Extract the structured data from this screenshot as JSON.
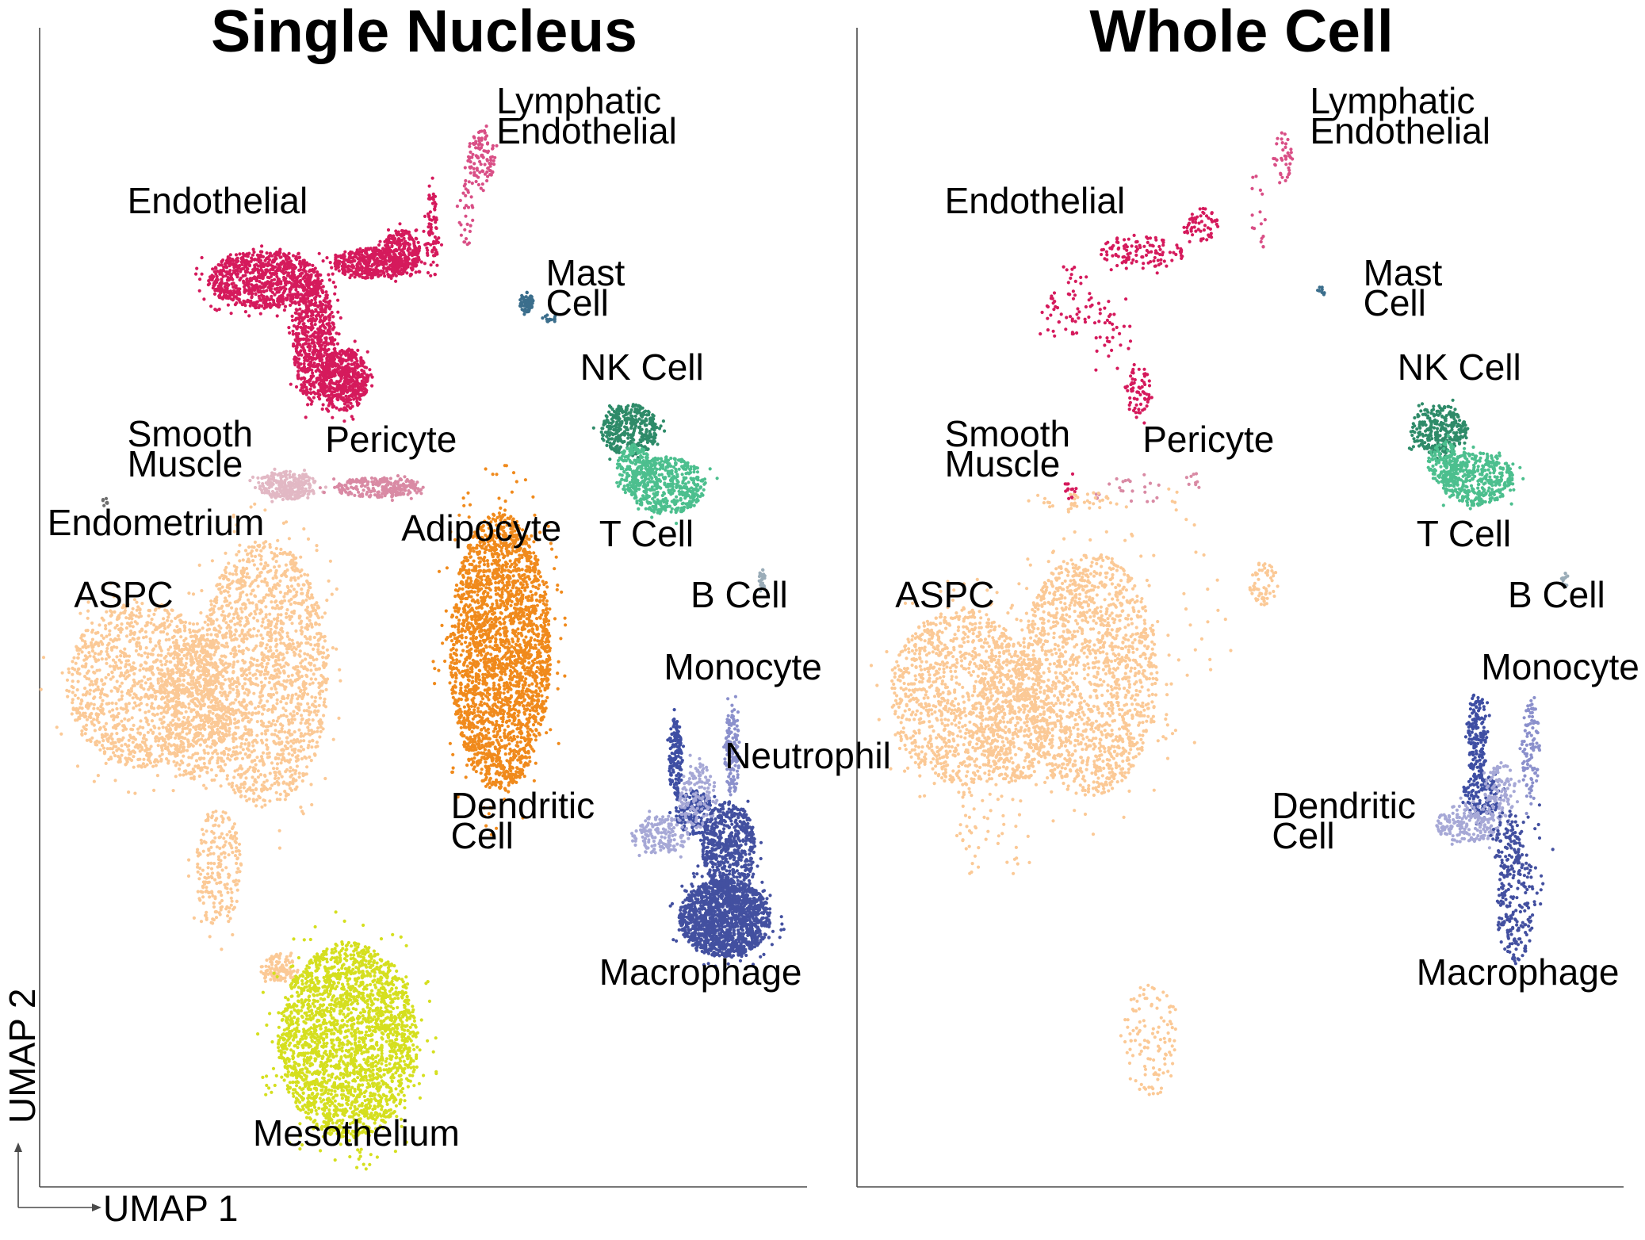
{
  "chart_data": [
    {
      "type": "scatter",
      "subtype": "umap",
      "title": "Single Nucleus",
      "xlabel": "UMAP 1",
      "ylabel": "UMAP 2",
      "xlim": [
        0,
        100
      ],
      "ylim": [
        0,
        100
      ],
      "grid": false,
      "legend": "none (clusters labeled in place)",
      "clusters": [
        {
          "name": "Lymphatic Endothelial",
          "label_lines": [
            "Lymphatic",
            "Endothelial"
          ],
          "color": "#d94f86",
          "density": 0.35,
          "blobs": [
            [
              57.5,
              91.5,
              1.8,
              2.5,
              300
            ],
            [
              55.5,
              86.5,
              0.9,
              3.5,
              90
            ]
          ]
        },
        {
          "name": "Endothelial",
          "label_lines": [
            "Endothelial"
          ],
          "color": "#d51a5c",
          "density": 1.0,
          "blobs": [
            [
              29,
              80.5,
              7.5,
              2.6,
              900
            ],
            [
              35.5,
              75,
              2.8,
              5.5,
              650
            ],
            [
              39.5,
              71.5,
              3.2,
              2.8,
              550
            ],
            [
              43,
              82,
              5.0,
              1.4,
              380
            ],
            [
              47,
              83,
              2.5,
              2.0,
              260
            ],
            [
              51,
              84.5,
              1.0,
              4.0,
              80
            ]
          ]
        },
        {
          "name": "Mast Cell",
          "label_lines": [
            "Mast",
            "Cell"
          ],
          "color": "#3b6e8c",
          "density": 0.5,
          "blobs": [
            [
              63.5,
              78.5,
              1.0,
              0.9,
              140
            ],
            [
              66.5,
              77.0,
              1.0,
              0.35,
              35
            ]
          ]
        },
        {
          "name": "NK Cell",
          "label_lines": [
            "NK Cell"
          ],
          "color": "#2e8b69",
          "density": 0.7,
          "blobs": [
            [
              77,
              67,
              3.8,
              2.3,
              520
            ]
          ]
        },
        {
          "name": "T Cell",
          "label_lines": [
            "T Cell"
          ],
          "color": "#4cbf8e",
          "density": 0.7,
          "blobs": [
            [
              82,
              62,
              5.0,
              2.6,
              700
            ],
            [
              77.5,
              63.5,
              2.2,
              2.2,
              250
            ]
          ]
        },
        {
          "name": "Smooth Muscle",
          "label_lines": [
            "Smooth",
            "Muscle"
          ],
          "color": "#e2b8c4",
          "density": 0.8,
          "blobs": [
            [
              32,
              62,
              3.8,
              1.3,
              380
            ]
          ]
        },
        {
          "name": "Pericyte",
          "label_lines": [
            "Pericyte"
          ],
          "color": "#d98aa4",
          "density": 0.8,
          "blobs": [
            [
              44,
              61.8,
              6.0,
              0.9,
              320
            ]
          ]
        },
        {
          "name": "Endometrium",
          "label_lines": [
            "Endometrium"
          ],
          "color": "#6e6e6e",
          "density": 0.3,
          "blobs": [
            [
              8,
              60.5,
              0.5,
              0.4,
              24
            ]
          ]
        },
        {
          "name": "Adipocyte",
          "label_lines": [
            "Adipocyte"
          ],
          "color": "#f08a1c",
          "density": 1.0,
          "blobs": [
            [
              60,
              47,
              6.6,
              12.5,
              2600
            ]
          ]
        },
        {
          "name": "ASPC",
          "label_lines": [
            "ASPC"
          ],
          "color": "#fbc996",
          "density": 1.0,
          "blobs": [
            [
              13,
              44,
              10.0,
              7.5,
              1200
            ],
            [
              29,
              45,
              8.5,
              12.0,
              1700
            ],
            [
              20,
              42,
              5.0,
              6.5,
              500
            ],
            [
              23,
              27.5,
              3.0,
              5.5,
              220
            ],
            [
              31,
              18.5,
              2.5,
              1.3,
              120
            ]
          ]
        },
        {
          "name": "Mesothelium",
          "label_lines": [
            "Mesothelium"
          ],
          "color": "#d5df1f",
          "density": 1.0,
          "blobs": [
            [
              40,
              12,
              9.2,
              8.8,
              2400
            ]
          ]
        },
        {
          "name": "B Cell",
          "label_lines": [
            "B Cell"
          ],
          "color": "#9aacb8",
          "density": 0.5,
          "blobs": [
            [
              94.5,
              53.5,
              0.5,
              0.9,
              50
            ]
          ]
        },
        {
          "name": "Monocyte",
          "label_lines": [
            "Monocyte"
          ],
          "color": "#3e4ea3",
          "density": 0.7,
          "blobs": [
            [
              83,
              37.5,
              0.9,
              3.5,
              220
            ],
            [
              85.5,
              32.5,
              2.5,
              2.0,
              260
            ]
          ]
        },
        {
          "name": "Neutrophil",
          "label_lines": [
            "Neutrophil"
          ],
          "color": "#8b90cc",
          "density": 0.7,
          "blobs": [
            [
              90.5,
              38,
              1.0,
              4.0,
              200
            ]
          ]
        },
        {
          "name": "Dendritic Cell",
          "label_lines": [
            "Dendritic",
            "Cell"
          ],
          "color": "#a6a8d6",
          "density": 0.7,
          "blobs": [
            [
              81,
              30.5,
              3.8,
              1.8,
              240
            ],
            [
              86,
              34,
              2.5,
              3.0,
              200
            ]
          ]
        },
        {
          "name": "Macrophage",
          "label_lines": [
            "Macrophage"
          ],
          "color": "#4350a0",
          "density": 1.0,
          "blobs": [
            [
              90,
              29.5,
              3.5,
              4.0,
              600
            ],
            [
              89.5,
              23,
              6.0,
              3.5,
              1500
            ]
          ]
        }
      ],
      "labels": [
        {
          "lines": [
            "Lymphatic",
            "Endothelial"
          ],
          "x": 59.5,
          "y": 95.5
        },
        {
          "lines": [
            "Endothelial"
          ],
          "x": 11,
          "y": 86.5
        },
        {
          "lines": [
            "Mast",
            "Cell"
          ],
          "x": 66,
          "y": 80
        },
        {
          "lines": [
            "NK Cell"
          ],
          "x": 70.5,
          "y": 71.5
        },
        {
          "lines": [
            "Smooth",
            "Muscle"
          ],
          "x": 11,
          "y": 65.5
        },
        {
          "lines": [
            "Pericyte"
          ],
          "x": 37,
          "y": 65
        },
        {
          "lines": [
            "Endometrium"
          ],
          "x": 0.5,
          "y": 57.5
        },
        {
          "lines": [
            "Adipocyte"
          ],
          "x": 47,
          "y": 57
        },
        {
          "lines": [
            "T Cell"
          ],
          "x": 73,
          "y": 56.5
        },
        {
          "lines": [
            "ASPC"
          ],
          "x": 4,
          "y": 51
        },
        {
          "lines": [
            "B Cell"
          ],
          "x": 85,
          "y": 51
        },
        {
          "lines": [
            "Monocyte"
          ],
          "x": 81.5,
          "y": 44.5
        },
        {
          "lines": [
            "Neutrophil"
          ],
          "x": 89.5,
          "y": 36.5
        },
        {
          "lines": [
            "Dendritic",
            "Cell"
          ],
          "x": 53.5,
          "y": 32
        },
        {
          "lines": [
            "Macrophage"
          ],
          "x": 73,
          "y": 17
        },
        {
          "lines": [
            "Mesothelium"
          ],
          "x": 27.5,
          "y": 2.5
        }
      ]
    },
    {
      "type": "scatter",
      "subtype": "umap",
      "title": "Whole Cell",
      "xlim": [
        0,
        100
      ],
      "ylim": [
        0,
        100
      ],
      "grid": false,
      "legend": "none (clusters labeled in place)",
      "clusters": [
        {
          "name": "Lymphatic Endothelial",
          "label_lines": [
            "Lymphatic",
            "Endothelial"
          ],
          "color": "#d94f86",
          "density": 0.35,
          "blobs": [
            [
              55.5,
              91.5,
              1.3,
              2.3,
              110
            ],
            [
              52.5,
              86.5,
              1.2,
              3.2,
              45
            ]
          ]
        },
        {
          "name": "Endothelial",
          "label_lines": [
            "Endothelial"
          ],
          "color": "#d51a5c",
          "density": 0.5,
          "blobs": [
            [
              37,
              83,
              5.5,
              1.6,
              230
            ],
            [
              27,
              78.5,
              3.5,
              3.5,
              120
            ],
            [
              36.5,
              70.5,
              1.8,
              2.5,
              140
            ],
            [
              44.5,
              85.5,
              2.5,
              1.5,
              120
            ],
            [
              32.5,
              75.5,
              2.5,
              3.5,
              70
            ]
          ]
        },
        {
          "name": "Mast Cell",
          "label_lines": [
            "Mast",
            "Cell"
          ],
          "color": "#3b6e8c",
          "density": 0.5,
          "blobs": [
            [
              60.5,
              79.5,
              0.5,
              0.5,
              22
            ]
          ]
        },
        {
          "name": "NK Cell",
          "label_lines": [
            "NK Cell"
          ],
          "color": "#2e8b69",
          "density": 0.7,
          "blobs": [
            [
              76,
              67,
              3.8,
              2.2,
              420
            ]
          ]
        },
        {
          "name": "T Cell",
          "label_lines": [
            "T Cell"
          ],
          "color": "#4cbf8e",
          "density": 0.7,
          "blobs": [
            [
              81,
              62.5,
              4.8,
              2.4,
              620
            ],
            [
              76.5,
              64,
              2.0,
              2.0,
              180
            ]
          ]
        },
        {
          "name": "Smooth Muscle",
          "label_lines": [
            "Smooth",
            "Muscle"
          ],
          "color": "#d51a5c",
          "density": 0.4,
          "blobs": [
            [
              27.5,
              62,
              0.8,
              1.3,
              35
            ]
          ]
        },
        {
          "name": "Pericyte",
          "label_lines": [
            "Pericyte"
          ],
          "color": "#d98aa4",
          "density": 0.4,
          "blobs": [
            [
              36,
              61.5,
              6.0,
              1.3,
              60
            ],
            [
              44,
              62.5,
              1.5,
              0.8,
              20
            ]
          ]
        },
        {
          "name": "ASPC",
          "label_lines": [
            "ASPC"
          ],
          "color": "#fbc996",
          "density": 1.0,
          "blobs": [
            [
              13,
              43,
              9.0,
              8.0,
              1100
            ],
            [
              30,
              45,
              9.0,
              11.0,
              1600
            ],
            [
              20,
              41.5,
              5.0,
              6.5,
              400
            ],
            [
              28,
              60.5,
              6.0,
              1.0,
              40
            ],
            [
              17,
              31,
              5.0,
              5.0,
              60
            ],
            [
              53,
              53,
              2.0,
              2.0,
              60
            ],
            [
              41,
              50,
              8.0,
              12.0,
              40
            ],
            [
              38,
              12,
              4.0,
              5.0,
              120
            ]
          ]
        },
        {
          "name": "B Cell",
          "label_lines": [
            "B Cell"
          ],
          "color": "#9aacb8",
          "density": 0.5,
          "blobs": [
            [
              92.5,
              53.5,
              0.5,
              0.6,
              25
            ]
          ]
        },
        {
          "name": "Monocyte",
          "label_lines": [
            "Monocyte"
          ],
          "color": "#3e4ea3",
          "density": 0.7,
          "blobs": [
            [
              81,
              39.5,
              1.3,
              4.0,
              260
            ],
            [
              81.5,
              34,
              2.5,
              2.0,
              180
            ]
          ]
        },
        {
          "name": "Neutrophil",
          "label_lines": [
            "Neutrophil"
          ],
          "color": "#8b90cc",
          "density": 0.7,
          "blobs": [
            [
              88,
              38,
              1.2,
              4.5,
              150
            ]
          ]
        },
        {
          "name": "Dendritic Cell",
          "label_lines": [
            "Dendritic",
            "Cell"
          ],
          "color": "#a6a8d6",
          "density": 0.7,
          "blobs": [
            [
              80,
              31.5,
              4.5,
              1.8,
              280
            ],
            [
              84,
              34.5,
              2.0,
              2.5,
              150
            ]
          ]
        },
        {
          "name": "Macrophage",
          "label_lines": [
            "Macrophage"
          ],
          "color": "#4350a0",
          "density": 0.6,
          "blobs": [
            [
              86,
              24.5,
              2.5,
              5.5,
              350
            ],
            [
              85,
              30,
              2.0,
              3.0,
              120
            ],
            [
              88,
              29,
              3.0,
              5.0,
              40
            ]
          ]
        }
      ],
      "labels": [
        {
          "lines": [
            "Lymphatic",
            "Endothelial"
          ],
          "x": 59,
          "y": 95.5
        },
        {
          "lines": [
            "Endothelial"
          ],
          "x": 11,
          "y": 86.5
        },
        {
          "lines": [
            "Mast",
            "Cell"
          ],
          "x": 66,
          "y": 80
        },
        {
          "lines": [
            "NK Cell"
          ],
          "x": 70.5,
          "y": 71.5
        },
        {
          "lines": [
            "Smooth",
            "Muscle"
          ],
          "x": 11,
          "y": 65.5
        },
        {
          "lines": [
            "Pericyte"
          ],
          "x": 37,
          "y": 65
        },
        {
          "lines": [
            "T Cell"
          ],
          "x": 73,
          "y": 56.5
        },
        {
          "lines": [
            "ASPC"
          ],
          "x": 4.5,
          "y": 51
        },
        {
          "lines": [
            "B Cell"
          ],
          "x": 85,
          "y": 51
        },
        {
          "lines": [
            "Monocyte"
          ],
          "x": 81.5,
          "y": 44.5
        },
        {
          "lines": [
            "Dendritic",
            "Cell"
          ],
          "x": 54,
          "y": 32
        },
        {
          "lines": [
            "Macrophage"
          ],
          "x": 73,
          "y": 17
        }
      ]
    }
  ]
}
